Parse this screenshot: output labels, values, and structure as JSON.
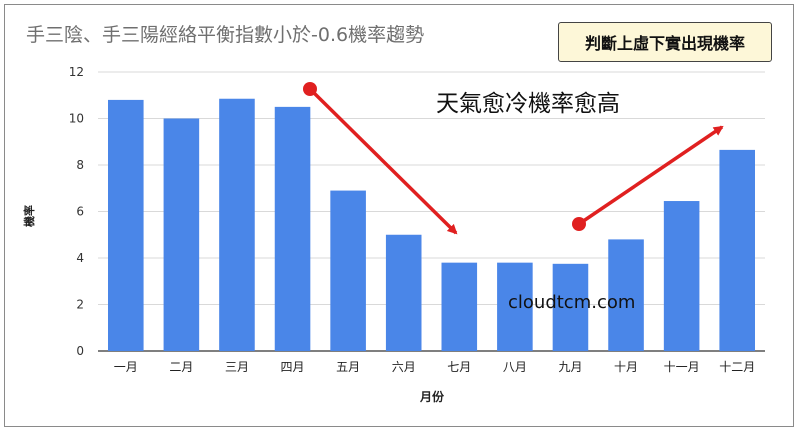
{
  "chart_data": {
    "type": "bar",
    "title": "手三陰、手三陽經絡平衡指數小於-0.6機率趨勢",
    "xlabel": "月份",
    "ylabel": "機率",
    "categories": [
      "一月",
      "二月",
      "三月",
      "四月",
      "五月",
      "六月",
      "七月",
      "八月",
      "九月",
      "十月",
      "十一月",
      "十二月"
    ],
    "values": [
      10.8,
      10.0,
      10.85,
      10.5,
      6.9,
      5.0,
      3.8,
      3.8,
      3.75,
      4.8,
      6.45,
      8.65
    ],
    "ylim": [
      0,
      12
    ],
    "yticks": [
      0,
      2,
      4,
      6,
      8,
      10,
      12
    ],
    "grid": true,
    "bar_color": "#4a86e8",
    "arrow_color": "#e02020"
  },
  "badge": "判斷上虛下實出現機率",
  "annotation": "天氣愈冷機率愈高",
  "watermark": "cloudtcm.com"
}
